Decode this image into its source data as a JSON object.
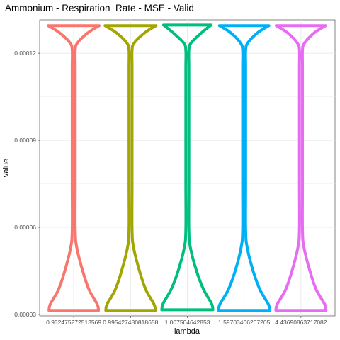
{
  "chart_data": {
    "type": "violin",
    "title": "Ammonium - Respiration_Rate - MSE - Valid",
    "xlabel": "lambda",
    "ylabel": "value",
    "ylim": [
      2.95e-05,
      0.0001315
    ],
    "yticks": [
      {
        "value": 3e-05,
        "label": "0.00003"
      },
      {
        "value": 6e-05,
        "label": "0.00006"
      },
      {
        "value": 9e-05,
        "label": "0.00009"
      },
      {
        "value": 0.00012,
        "label": "0.00012"
      }
    ],
    "grid": true,
    "legend": "none",
    "categories": [
      "0.932475272513569",
      "0.995427480818658",
      "1.007504642853",
      "1.59703406267205",
      "4.43690863717082"
    ],
    "series": [
      {
        "category": "0.932475272513569",
        "color": "#F8766D",
        "min": 3.14e-05,
        "max": 0.0001295,
        "halfwidth_rel": [
          0.97,
          0.92,
          0.6,
          0.35,
          0.12,
          0.06,
          0.06,
          0.06,
          0.06,
          0.06,
          0.14,
          0.55,
          1.0
        ],
        "density_at": [
          3.14e-05,
          3.35e-05,
          3.85e-05,
          4.5e-05,
          5.3e-05,
          5.9e-05,
          7.5e-05,
          0.0001,
          0.000115,
          0.000121,
          0.0001235,
          0.000127,
          0.0001295
        ]
      },
      {
        "category": "0.995427480818658",
        "color": "#A3A500",
        "min": 3.14e-05,
        "max": 0.0001295,
        "halfwidth_rel": [
          0.97,
          0.92,
          0.6,
          0.35,
          0.12,
          0.06,
          0.06,
          0.06,
          0.06,
          0.06,
          0.14,
          0.55,
          1.0
        ],
        "density_at": [
          3.14e-05,
          3.35e-05,
          3.85e-05,
          4.5e-05,
          5.3e-05,
          5.9e-05,
          7.5e-05,
          0.0001,
          0.000115,
          0.000121,
          0.0001235,
          0.000127,
          0.0001295
        ]
      },
      {
        "category": "1.007504642853",
        "color": "#00BF7D",
        "min": 3.16e-05,
        "max": 0.0001297,
        "halfwidth_rel": [
          1.0,
          0.95,
          0.63,
          0.36,
          0.12,
          0.06,
          0.06,
          0.06,
          0.06,
          0.06,
          0.14,
          0.55,
          0.93
        ],
        "density_at": [
          3.16e-05,
          3.37e-05,
          3.87e-05,
          4.5e-05,
          5.3e-05,
          5.9e-05,
          7.5e-05,
          0.0001,
          0.000115,
          0.000121,
          0.0001235,
          0.000127,
          0.0001297
        ]
      },
      {
        "category": "1.59703406267205",
        "color": "#00B0F6",
        "min": 3.14e-05,
        "max": 0.0001295,
        "halfwidth_rel": [
          1.0,
          0.95,
          0.62,
          0.35,
          0.12,
          0.06,
          0.06,
          0.06,
          0.06,
          0.06,
          0.14,
          0.52,
          0.97
        ],
        "density_at": [
          3.14e-05,
          3.35e-05,
          3.85e-05,
          4.5e-05,
          5.3e-05,
          5.9e-05,
          7.5e-05,
          0.0001,
          0.000115,
          0.000121,
          0.0001235,
          0.000127,
          0.0001295
        ]
      },
      {
        "category": "4.43690863717082",
        "color": "#E76BF3",
        "min": 3.14e-05,
        "max": 0.0001295,
        "halfwidth_rel": [
          0.98,
          0.93,
          0.6,
          0.35,
          0.12,
          0.06,
          0.06,
          0.06,
          0.06,
          0.06,
          0.14,
          0.52,
          0.97
        ],
        "density_at": [
          3.14e-05,
          3.35e-05,
          3.85e-05,
          4.5e-05,
          5.3e-05,
          5.9e-05,
          7.5e-05,
          0.0001,
          0.000115,
          0.000121,
          0.0001235,
          0.000127,
          0.0001295
        ]
      }
    ]
  }
}
